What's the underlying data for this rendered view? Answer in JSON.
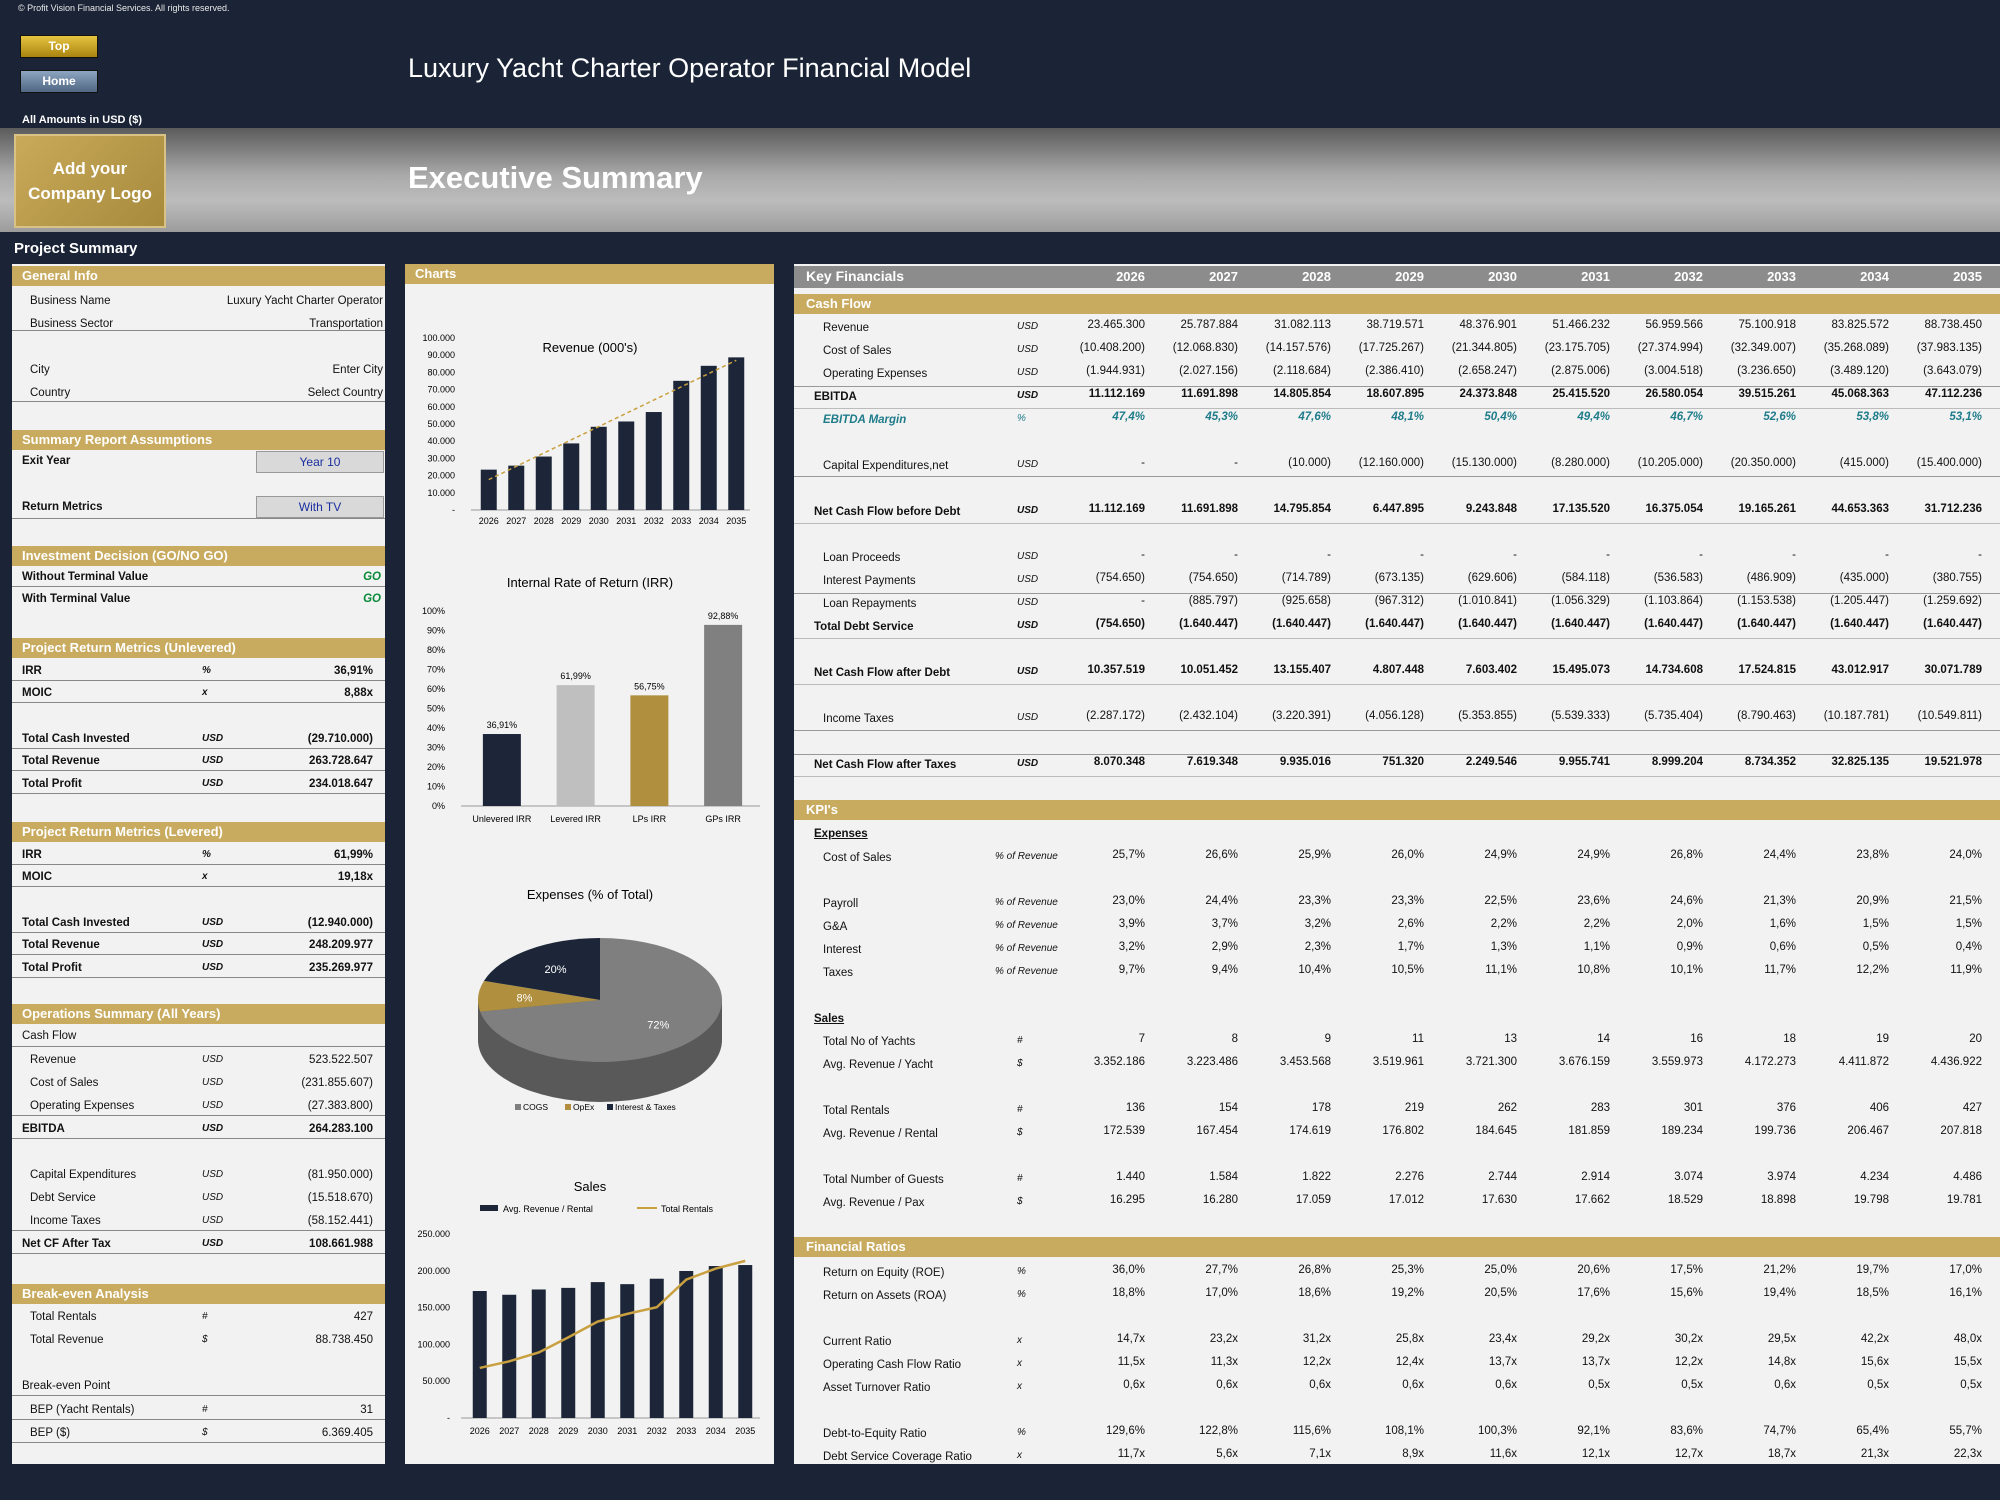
{
  "copyright": "© Profit Vision Financial Services. All rights reserved.",
  "nav": {
    "top": "Top",
    "home": "Home"
  },
  "title": "Luxury Yacht Charter Operator Financial Model",
  "amounts_label": "All Amounts in  USD ($)",
  "logo_text": "Add your Company Logo",
  "section_title": "Executive Summary",
  "project_summary": "Project Summary",
  "left": {
    "general": {
      "header": "General Info",
      "rows": [
        [
          "Business Name",
          "Luxury Yacht Charter Operator"
        ],
        [
          "Business Sector",
          "Transportation"
        ],
        [
          "City",
          "Enter City"
        ],
        [
          "Country",
          "Select Country"
        ]
      ]
    },
    "assumptions": {
      "header": "Summary  Report Assumptions",
      "exit_label": "Exit Year",
      "exit_value": "Year 10",
      "return_label": "Return Metrics",
      "return_value": "With TV"
    },
    "decision": {
      "header": "Investment Decision (GO/NO GO)",
      "rows": [
        [
          "Without Terminal Value",
          "GO"
        ],
        [
          "With Terminal Value",
          "GO"
        ]
      ]
    },
    "unlevered": {
      "header": "Project Return Metrics (Unlevered)",
      "rows": [
        [
          "IRR",
          "%",
          "36,91%"
        ],
        [
          "MOIC",
          "x",
          "8,88x"
        ],
        [
          "Total Cash Invested",
          "USD",
          "(29.710.000)"
        ],
        [
          "Total Revenue",
          "USD",
          "263.728.647"
        ],
        [
          "Total Profit",
          "USD",
          "234.018.647"
        ]
      ]
    },
    "levered": {
      "header": "Project Return Metrics (Levered)",
      "rows": [
        [
          "IRR",
          "%",
          "61,99%"
        ],
        [
          "MOIC",
          "x",
          "19,18x"
        ],
        [
          "Total Cash Invested",
          "USD",
          "(12.940.000)"
        ],
        [
          "Total Revenue",
          "USD",
          "248.209.977"
        ],
        [
          "Total Profit",
          "USD",
          "235.269.977"
        ]
      ]
    },
    "operations": {
      "header": "Operations Summary (All Years)",
      "sub": "Cash Flow",
      "rows": [
        [
          "Revenue",
          "USD",
          "523.522.507"
        ],
        [
          "Cost of Sales",
          "USD",
          "(231.855.607)"
        ],
        [
          "Operating Expenses",
          "USD",
          "(27.383.800)"
        ],
        [
          "EBITDA",
          "USD",
          "264.283.100"
        ],
        [
          "Capital Expenditures",
          "USD",
          "(81.950.000)"
        ],
        [
          "Debt Service",
          "USD",
          "(15.518.670)"
        ],
        [
          "Income Taxes",
          "USD",
          "(58.152.441)"
        ],
        [
          "Net CF After Tax",
          "USD",
          "108.661.988"
        ]
      ]
    },
    "breakeven": {
      "header": "Break-even Analysis",
      "rows": [
        [
          "Total Rentals",
          "#",
          "427"
        ],
        [
          "Total Revenue",
          "$",
          "88.738.450"
        ]
      ],
      "sub": "Break-even Point",
      "bep": [
        [
          "BEP (Yacht Rentals)",
          "#",
          "31"
        ],
        [
          "BEP ($)",
          "$",
          "6.369.405"
        ]
      ]
    }
  },
  "charts_header": "Charts",
  "chart_data": [
    {
      "type": "bar",
      "title": "Revenue (000's)",
      "categories": [
        "2026",
        "2027",
        "2028",
        "2029",
        "2030",
        "2031",
        "2032",
        "2033",
        "2034",
        "2035"
      ],
      "values": [
        23465,
        25788,
        31082,
        38720,
        48377,
        51466,
        56960,
        75101,
        83826,
        88738
      ],
      "ylim": [
        0,
        100000
      ],
      "yticks": [
        "-",
        "10.000",
        "20.000",
        "30.000",
        "40.000",
        "50.000",
        "60.000",
        "70.000",
        "80.000",
        "90.000",
        "100.000"
      ],
      "trendline": true
    },
    {
      "type": "bar",
      "title": "Internal Rate of Return (IRR)",
      "categories": [
        "Unlevered IRR",
        "Levered IRR",
        "LPs IRR",
        "GPs IRR"
      ],
      "values": [
        36.91,
        61.99,
        56.75,
        92.88
      ],
      "labels": [
        "36,91%",
        "61,99%",
        "56,75%",
        "92,88%"
      ],
      "colors": [
        "#1d2639",
        "#bfbfbf",
        "#b08f3f",
        "#808080"
      ],
      "ylim": [
        0,
        100
      ],
      "yticks": [
        "0%",
        "10%",
        "20%",
        "30%",
        "40%",
        "50%",
        "60%",
        "70%",
        "80%",
        "90%",
        "100%"
      ]
    },
    {
      "type": "pie",
      "title": "Expenses (% of Total)",
      "slices": [
        {
          "name": "COGS",
          "value": 72,
          "label": "72%",
          "color": "#7f7f7f"
        },
        {
          "name": "OpEx",
          "value": 8,
          "label": "8%",
          "color": "#b08f3f"
        },
        {
          "name": "Interest & Taxes",
          "value": 20,
          "label": "20%",
          "color": "#1d2639"
        }
      ],
      "legend": [
        "COGS",
        "OpEx",
        "Interest & Taxes"
      ]
    },
    {
      "type": "bar",
      "title": "Sales",
      "categories": [
        "2026",
        "2027",
        "2028",
        "2029",
        "2030",
        "2031",
        "2032",
        "2033",
        "2034",
        "2035"
      ],
      "series": [
        {
          "name": "Avg. Revenue / Rental",
          "type": "bar",
          "values": [
            172539,
            167454,
            174619,
            176802,
            184645,
            181859,
            189234,
            199736,
            206467,
            207818
          ]
        },
        {
          "name": "Total Rentals",
          "type": "line",
          "values": [
            136,
            154,
            178,
            219,
            262,
            283,
            301,
            376,
            406,
            427
          ]
        }
      ],
      "ylim": [
        0,
        250000
      ],
      "yticks": [
        "-",
        "50.000",
        "100.000",
        "150.000",
        "200.000",
        "250.000"
      ]
    }
  ],
  "kf": {
    "title": "Key Financials",
    "years": [
      "2026",
      "2027",
      "2028",
      "2029",
      "2030",
      "2031",
      "2032",
      "2033",
      "2034",
      "2035"
    ],
    "cash_flow_header": "Cash Flow",
    "kpi_header": "KPI's",
    "ratios_header": "Financial Ratios",
    "rows": [
      {
        "label": "Revenue",
        "unit": "USD",
        "vals": [
          "23.465.300",
          "25.787.884",
          "31.082.113",
          "38.719.571",
          "48.376.901",
          "51.466.232",
          "56.959.566",
          "75.100.918",
          "83.825.572",
          "88.738.450"
        ]
      },
      {
        "label": "Cost of Sales",
        "unit": "USD",
        "vals": [
          "(10.408.200)",
          "(12.068.830)",
          "(14.157.576)",
          "(17.725.267)",
          "(21.344.805)",
          "(23.175.705)",
          "(27.374.994)",
          "(32.349.007)",
          "(35.268.089)",
          "(37.983.135)"
        ]
      },
      {
        "label": "Operating Expenses",
        "unit": "USD",
        "vals": [
          "(1.944.931)",
          "(2.027.156)",
          "(2.118.684)",
          "(2.386.410)",
          "(2.658.247)",
          "(2.875.006)",
          "(3.004.518)",
          "(3.236.650)",
          "(3.489.120)",
          "(3.643.079)"
        ]
      },
      {
        "label": "EBITDA",
        "unit": "USD",
        "vals": [
          "11.112.169",
          "11.691.898",
          "14.805.854",
          "18.607.895",
          "24.373.848",
          "25.415.520",
          "26.580.054",
          "39.515.261",
          "45.068.363",
          "47.112.236"
        ]
      },
      {
        "label": "EBITDA Margin",
        "unit": "%",
        "vals": [
          "47,4%",
          "45,3%",
          "47,6%",
          "48,1%",
          "50,4%",
          "49,4%",
          "46,7%",
          "52,6%",
          "53,8%",
          "53,1%"
        ]
      },
      {
        "label": "Capital Expenditures,net",
        "unit": "USD",
        "vals": [
          "-",
          "-",
          "(10.000)",
          "(12.160.000)",
          "(15.130.000)",
          "(8.280.000)",
          "(10.205.000)",
          "(20.350.000)",
          "(415.000)",
          "(15.400.000)"
        ]
      },
      {
        "label": "Net Cash Flow before Debt",
        "unit": "USD",
        "vals": [
          "11.112.169",
          "11.691.898",
          "14.795.854",
          "6.447.895",
          "9.243.848",
          "17.135.520",
          "16.375.054",
          "19.165.261",
          "44.653.363",
          "31.712.236"
        ]
      },
      {
        "label": "Loan Proceeds",
        "unit": "USD",
        "vals": [
          "-",
          "-",
          "-",
          "-",
          "-",
          "-",
          "-",
          "-",
          "-",
          "-"
        ]
      },
      {
        "label": "Interest Payments",
        "unit": "USD",
        "vals": [
          "(754.650)",
          "(754.650)",
          "(714.789)",
          "(673.135)",
          "(629.606)",
          "(584.118)",
          "(536.583)",
          "(486.909)",
          "(435.000)",
          "(380.755)"
        ]
      },
      {
        "label": "Loan Repayments",
        "unit": "USD",
        "vals": [
          "-",
          "(885.797)",
          "(925.658)",
          "(967.312)",
          "(1.010.841)",
          "(1.056.329)",
          "(1.103.864)",
          "(1.153.538)",
          "(1.205.447)",
          "(1.259.692)"
        ]
      },
      {
        "label": "Total Debt Service",
        "unit": "USD",
        "vals": [
          "(754.650)",
          "(1.640.447)",
          "(1.640.447)",
          "(1.640.447)",
          "(1.640.447)",
          "(1.640.447)",
          "(1.640.447)",
          "(1.640.447)",
          "(1.640.447)",
          "(1.640.447)"
        ]
      },
      {
        "label": "Net Cash Flow after Debt",
        "unit": "USD",
        "vals": [
          "10.357.519",
          "10.051.452",
          "13.155.407",
          "4.807.448",
          "7.603.402",
          "15.495.073",
          "14.734.608",
          "17.524.815",
          "43.012.917",
          "30.071.789"
        ]
      },
      {
        "label": "Income Taxes",
        "unit": "USD",
        "vals": [
          "(2.287.172)",
          "(2.432.104)",
          "(3.220.391)",
          "(4.056.128)",
          "(5.353.855)",
          "(5.539.333)",
          "(5.735.404)",
          "(8.790.463)",
          "(10.187.781)",
          "(10.549.811)"
        ]
      },
      {
        "label": "Net Cash Flow after Taxes",
        "unit": "USD",
        "vals": [
          "8.070.348",
          "7.619.348",
          "9.935.016",
          "751.320",
          "2.249.546",
          "9.955.741",
          "8.999.204",
          "8.734.352",
          "32.825.135",
          "19.521.978"
        ]
      },
      {
        "label": "Expenses",
        "unit": "",
        "vals": []
      },
      {
        "label": "Cost of Sales",
        "unit": "% of Revenue",
        "vals": [
          "25,7%",
          "26,6%",
          "25,9%",
          "26,0%",
          "24,9%",
          "24,9%",
          "26,8%",
          "24,4%",
          "23,8%",
          "24,0%"
        ]
      },
      {
        "label": "Payroll",
        "unit": "% of Revenue",
        "vals": [
          "23,0%",
          "24,4%",
          "23,3%",
          "23,3%",
          "22,5%",
          "23,6%",
          "24,6%",
          "21,3%",
          "20,9%",
          "21,5%"
        ]
      },
      {
        "label": "G&A",
        "unit": "% of Revenue",
        "vals": [
          "3,9%",
          "3,7%",
          "3,2%",
          "2,6%",
          "2,2%",
          "2,2%",
          "2,0%",
          "1,6%",
          "1,5%",
          "1,5%"
        ]
      },
      {
        "label": "Interest",
        "unit": "% of Revenue",
        "vals": [
          "3,2%",
          "2,9%",
          "2,3%",
          "1,7%",
          "1,3%",
          "1,1%",
          "0,9%",
          "0,6%",
          "0,5%",
          "0,4%"
        ]
      },
      {
        "label": "Taxes",
        "unit": "% of Revenue",
        "vals": [
          "9,7%",
          "9,4%",
          "10,4%",
          "10,5%",
          "11,1%",
          "10,8%",
          "10,1%",
          "11,7%",
          "12,2%",
          "11,9%"
        ]
      },
      {
        "label": "Sales",
        "unit": "",
        "vals": []
      },
      {
        "label": "Total No of Yachts",
        "unit": "#",
        "vals": [
          "7",
          "8",
          "9",
          "11",
          "13",
          "14",
          "16",
          "18",
          "19",
          "20"
        ]
      },
      {
        "label": "Avg. Revenue / Yacht",
        "unit": "$",
        "vals": [
          "3.352.186",
          "3.223.486",
          "3.453.568",
          "3.519.961",
          "3.721.300",
          "3.676.159",
          "3.559.973",
          "4.172.273",
          "4.411.872",
          "4.436.922"
        ]
      },
      {
        "label": "Total Rentals",
        "unit": "#",
        "vals": [
          "136",
          "154",
          "178",
          "219",
          "262",
          "283",
          "301",
          "376",
          "406",
          "427"
        ]
      },
      {
        "label": "Avg. Revenue / Rental",
        "unit": "$",
        "vals": [
          "172.539",
          "167.454",
          "174.619",
          "176.802",
          "184.645",
          "181.859",
          "189.234",
          "199.736",
          "206.467",
          "207.818"
        ]
      },
      {
        "label": "Total Number of Guests",
        "unit": "#",
        "vals": [
          "1.440",
          "1.584",
          "1.822",
          "2.276",
          "2.744",
          "2.914",
          "3.074",
          "3.974",
          "4.234",
          "4.486"
        ]
      },
      {
        "label": "Avg. Revenue / Pax",
        "unit": "$",
        "vals": [
          "16.295",
          "16.280",
          "17.059",
          "17.012",
          "17.630",
          "17.662",
          "18.529",
          "18.898",
          "19.798",
          "19.781"
        ]
      },
      {
        "label": "Return on Equity (ROE)",
        "unit": "%",
        "vals": [
          "36,0%",
          "27,7%",
          "26,8%",
          "25,3%",
          "25,0%",
          "20,6%",
          "17,5%",
          "21,2%",
          "19,7%",
          "17,0%"
        ]
      },
      {
        "label": "Return on Assets (ROA)",
        "unit": "%",
        "vals": [
          "18,8%",
          "17,0%",
          "18,6%",
          "19,2%",
          "20,5%",
          "17,6%",
          "15,6%",
          "19,4%",
          "18,5%",
          "16,1%"
        ]
      },
      {
        "label": "Current Ratio",
        "unit": "x",
        "vals": [
          "14,7x",
          "23,2x",
          "31,2x",
          "25,8x",
          "23,4x",
          "29,2x",
          "30,2x",
          "29,5x",
          "42,2x",
          "48,0x"
        ]
      },
      {
        "label": "Operating Cash Flow Ratio",
        "unit": "x",
        "vals": [
          "11,5x",
          "11,3x",
          "12,2x",
          "12,4x",
          "13,7x",
          "13,7x",
          "12,2x",
          "14,8x",
          "15,6x",
          "15,5x"
        ]
      },
      {
        "label": "Asset Turnover Ratio",
        "unit": "x",
        "vals": [
          "0,6x",
          "0,6x",
          "0,6x",
          "0,6x",
          "0,6x",
          "0,5x",
          "0,5x",
          "0,6x",
          "0,5x",
          "0,5x"
        ]
      },
      {
        "label": "Debt-to-Equity Ratio",
        "unit": "%",
        "vals": [
          "129,6%",
          "122,8%",
          "115,6%",
          "108,1%",
          "100,3%",
          "92,1%",
          "83,6%",
          "74,7%",
          "65,4%",
          "55,7%"
        ]
      },
      {
        "label": "Debt Service Coverage Ratio",
        "unit": "x",
        "vals": [
          "11,7x",
          "5,6x",
          "7,1x",
          "8,9x",
          "11,6x",
          "12,1x",
          "12,7x",
          "18,7x",
          "21,3x",
          "22,3x"
        ]
      }
    ]
  }
}
